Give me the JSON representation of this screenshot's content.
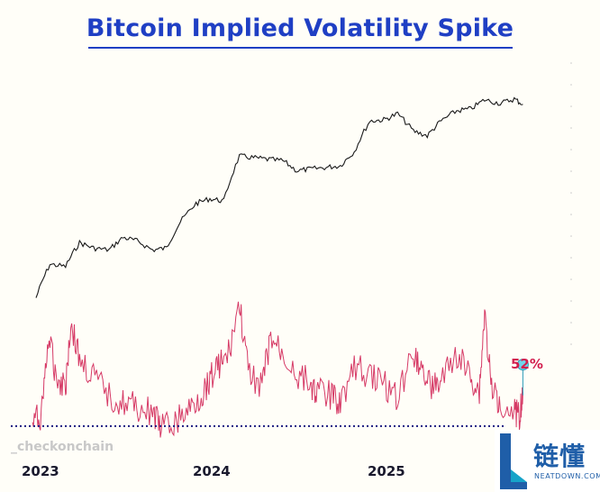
{
  "chart_data": {
    "type": "line",
    "title": "Bitcoin Implied Volatility Spike",
    "x_ticks": [
      "2023",
      "2024",
      "2025"
    ],
    "callout": {
      "label": "52%",
      "series": "Implied Volatility"
    },
    "series": [
      {
        "key": "price",
        "color": "#1a1a1a",
        "x": [
          2023.0,
          2023.08,
          2023.17,
          2023.25,
          2023.33,
          2023.42,
          2023.5,
          2023.58,
          2023.67,
          2023.75,
          2023.83,
          2023.92,
          2024.0,
          2024.08,
          2024.17,
          2024.25,
          2024.33,
          2024.42,
          2024.5,
          2024.58,
          2024.67,
          2024.75,
          2024.83,
          2024.92,
          2025.0,
          2025.08,
          2025.17,
          2025.25,
          2025.33,
          2025.42,
          2025.5,
          2025.58,
          2025.67,
          2025.75,
          2025.8
        ],
        "values": [
          16500,
          23000,
          22500,
          28500,
          27000,
          26500,
          30000,
          29000,
          26500,
          27000,
          35000,
          42000,
          44000,
          43000,
          67000,
          66000,
          65000,
          64000,
          58000,
          59000,
          60000,
          61000,
          70000,
          95000,
          96000,
          102000,
          86000,
          82000,
          95000,
          105000,
          107000,
          117000,
          113000,
          118000,
          112000
        ]
      },
      {
        "key": "iv",
        "color": "#d63a66",
        "x": [
          2022.98,
          2023.03,
          2023.07,
          2023.12,
          2023.17,
          2023.2,
          2023.25,
          2023.33,
          2023.42,
          2023.5,
          2023.58,
          2023.67,
          2023.72,
          2023.8,
          2023.88,
          2023.95,
          2024.0,
          2024.05,
          2024.1,
          2024.17,
          2024.22,
          2024.3,
          2024.35,
          2024.42,
          2024.5,
          2024.58,
          2024.62,
          2024.7,
          2024.75,
          2024.83,
          2024.92,
          2025.0,
          2025.08,
          2025.17,
          2025.22,
          2025.28,
          2025.33,
          2025.42,
          2025.5,
          2025.55,
          2025.58,
          2025.62,
          2025.67,
          2025.75,
          2025.78,
          2025.8
        ],
        "values": [
          38,
          42,
          75,
          58,
          55,
          82,
          66,
          58,
          50,
          47,
          45,
          43,
          36,
          38,
          44,
          50,
          58,
          64,
          66,
          90,
          60,
          55,
          75,
          68,
          60,
          55,
          52,
          50,
          48,
          62,
          60,
          55,
          50,
          70,
          62,
          54,
          56,
          68,
          58,
          52,
          86,
          52,
          48,
          44,
          42,
          52
        ]
      }
    ],
    "reference_line": {
      "color": "#1a1a80",
      "value": 37
    }
  },
  "watermark": "_checkonchain",
  "logo": {
    "text": "链懂",
    "sub": "NEATDOWN.COM"
  }
}
